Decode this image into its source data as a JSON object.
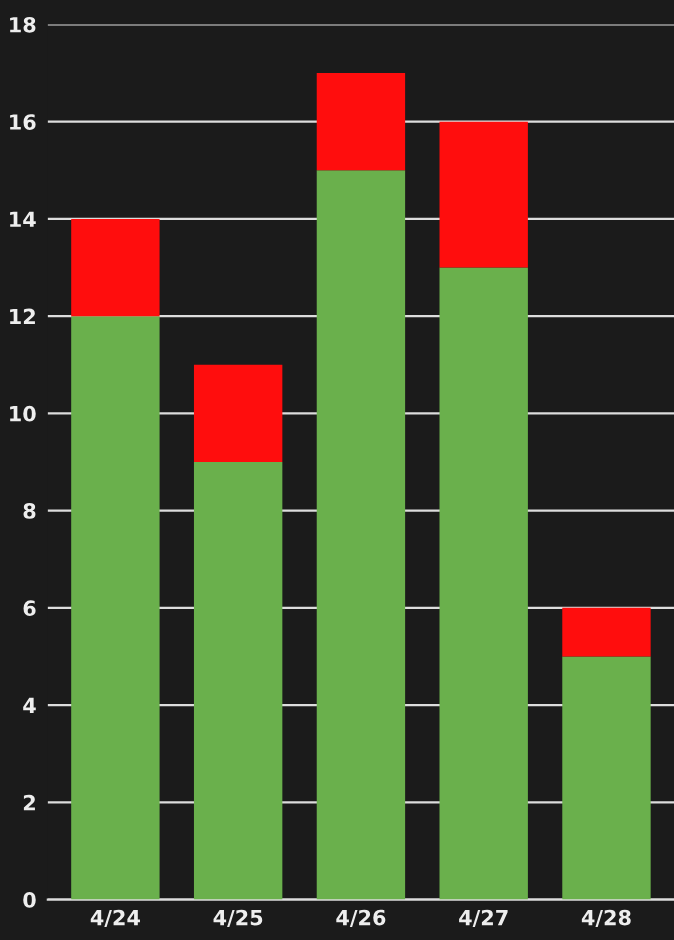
{
  "chart_data": {
    "type": "bar",
    "stacked": true,
    "categories": [
      "4/24",
      "4/25",
      "4/26",
      "4/27",
      "4/28"
    ],
    "series": [
      {
        "color": "#6ab04c",
        "values": [
          12,
          9,
          15,
          13,
          5
        ]
      },
      {
        "color": "#ff0d0d",
        "values": [
          2,
          2,
          2,
          3,
          1
        ]
      }
    ],
    "ylim": [
      0,
      18
    ],
    "yticks": [
      0,
      2,
      4,
      6,
      8,
      10,
      12,
      14,
      16,
      18
    ],
    "grid": "y"
  }
}
